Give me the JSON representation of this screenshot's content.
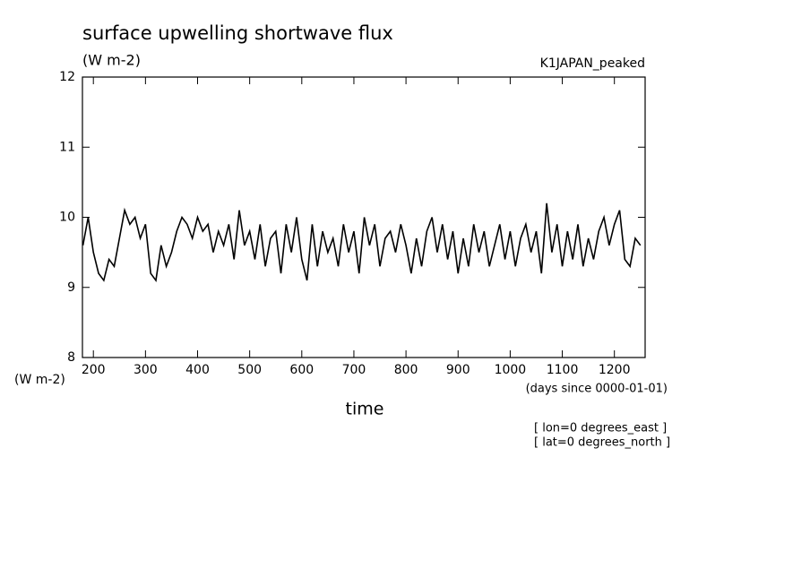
{
  "chart_data": {
    "type": "line",
    "title": "surface upwelling shortwave flux",
    "subtitle": "(W m-2)",
    "dataset": "K1JAPAN_peaked",
    "y_label": "(W m-2)",
    "x_units": "(days since 0000-01-01)",
    "x_label": "time",
    "annotations": [
      "[ lon=0 degrees_east ]",
      "[ lat=0 degrees_north ]"
    ],
    "xlim": [
      179,
      1259
    ],
    "xticks": [
      200,
      300,
      400,
      500,
      600,
      700,
      800,
      900,
      1000,
      1100,
      1200
    ],
    "ylim": [
      8,
      12
    ],
    "yticks": [
      8,
      9,
      10,
      11,
      12
    ],
    "grid": false,
    "series": [
      {
        "color": "#000000",
        "x": [
          180,
          190,
          200,
          210,
          220,
          230,
          240,
          250,
          260,
          270,
          280,
          290,
          300,
          310,
          320,
          330,
          340,
          350,
          360,
          370,
          380,
          390,
          400,
          410,
          420,
          430,
          440,
          450,
          460,
          470,
          480,
          490,
          500,
          510,
          520,
          530,
          540,
          550,
          560,
          570,
          580,
          590,
          600,
          610,
          620,
          630,
          640,
          650,
          660,
          670,
          680,
          690,
          700,
          710,
          720,
          730,
          740,
          750,
          760,
          770,
          780,
          790,
          800,
          810,
          820,
          830,
          840,
          850,
          860,
          870,
          880,
          890,
          900,
          910,
          920,
          930,
          940,
          950,
          960,
          970,
          980,
          990,
          1000,
          1010,
          1020,
          1030,
          1040,
          1050,
          1060,
          1070,
          1080,
          1090,
          1100,
          1110,
          1120,
          1130,
          1140,
          1150,
          1160,
          1170,
          1180,
          1190,
          1200,
          1210,
          1220,
          1230,
          1240,
          1250
        ],
        "values": [
          9.6,
          10.0,
          9.5,
          9.2,
          9.1,
          9.4,
          9.3,
          9.7,
          10.1,
          9.9,
          10.0,
          9.7,
          9.9,
          9.2,
          9.1,
          9.6,
          9.3,
          9.5,
          9.8,
          10.0,
          9.9,
          9.7,
          10.0,
          9.8,
          9.9,
          9.5,
          9.8,
          9.6,
          9.9,
          9.4,
          10.1,
          9.6,
          9.8,
          9.4,
          9.9,
          9.3,
          9.7,
          9.8,
          9.2,
          9.9,
          9.5,
          10.0,
          9.4,
          9.1,
          9.9,
          9.3,
          9.8,
          9.5,
          9.7,
          9.3,
          9.9,
          9.5,
          9.8,
          9.2,
          10.0,
          9.6,
          9.9,
          9.3,
          9.7,
          9.8,
          9.5,
          9.9,
          9.6,
          9.2,
          9.7,
          9.3,
          9.8,
          10.0,
          9.5,
          9.9,
          9.4,
          9.8,
          9.2,
          9.7,
          9.3,
          9.9,
          9.5,
          9.8,
          9.3,
          9.6,
          9.9,
          9.4,
          9.8,
          9.3,
          9.7,
          9.9,
          9.5,
          9.8,
          9.2,
          10.2,
          9.5,
          9.9,
          9.3,
          9.8,
          9.4,
          9.9,
          9.3,
          9.7,
          9.4,
          9.8,
          10.0,
          9.6,
          9.9,
          10.1,
          9.4,
          9.3,
          9.7,
          9.6
        ]
      }
    ]
  }
}
